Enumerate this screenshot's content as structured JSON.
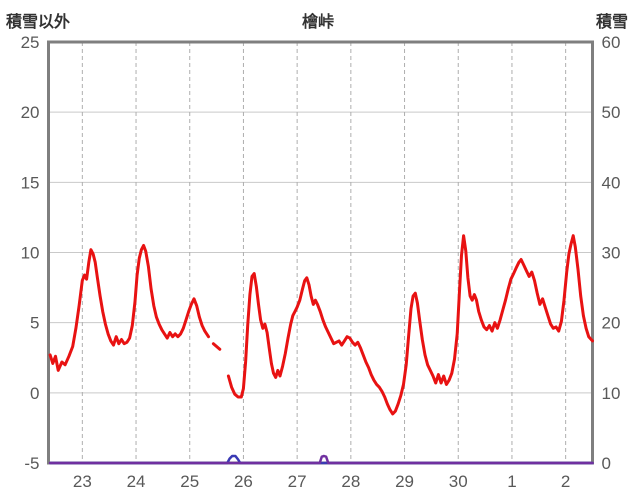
{
  "chart": {
    "title": "檜峠",
    "left_axis_title": "積雪以外",
    "right_axis_title": "積雪"
  },
  "chart_data": {
    "type": "line",
    "title": "檜峠",
    "legend": "none",
    "grid": {
      "horizontal": "solid",
      "vertical": "dashed"
    },
    "style": {
      "red_line": "#e81212",
      "purple_line": "#7030a0",
      "blue_line": "#3a3ab4",
      "grid_h": "#c9c9c9",
      "grid_v": "#aeaeae",
      "border": "#7f7f7f",
      "tick_text": "#595959",
      "title_text": "#333333",
      "background": "#ffffff"
    },
    "left_axis": {
      "label": "積雪以外",
      "range": [
        -5,
        25
      ],
      "ticks": [
        -5,
        0,
        5,
        10,
        15,
        20,
        25
      ]
    },
    "right_axis": {
      "label": "積雪",
      "range": [
        0,
        60
      ],
      "ticks": [
        0,
        10,
        20,
        30,
        40,
        50,
        60
      ]
    },
    "x_axis": {
      "range": [
        22.37,
        32.5
      ],
      "tick_positions": [
        23,
        24,
        25,
        26,
        27,
        28,
        29,
        30,
        31,
        32
      ],
      "tick_labels": [
        "23",
        "24",
        "25",
        "26",
        "27",
        "28",
        "29",
        "30",
        "1",
        "2"
      ]
    },
    "series": [
      {
        "name": "blue-baseline",
        "axis": "right",
        "color": "#3a3ab4",
        "width": 2.5,
        "segments": [
          [
            [
              22.4,
              0
            ],
            [
              25.7,
              0
            ],
            [
              25.74,
              0.6
            ],
            [
              25.79,
              1.0
            ],
            [
              25.85,
              1.0
            ],
            [
              25.9,
              0.5
            ],
            [
              25.94,
              0
            ],
            [
              32.5,
              0
            ]
          ]
        ]
      },
      {
        "name": "purple-baseline",
        "axis": "right",
        "color": "#7030a0",
        "width": 2.5,
        "segments": [
          [
            [
              22.4,
              0
            ],
            [
              27.42,
              0
            ],
            [
              27.46,
              0.9
            ],
            [
              27.5,
              1.0
            ],
            [
              27.54,
              0.9
            ],
            [
              27.58,
              0
            ],
            [
              32.5,
              0
            ]
          ]
        ]
      },
      {
        "name": "red-line",
        "axis": "left",
        "color": "#e81212",
        "width": 3,
        "segments": [
          [
            [
              22.4,
              2.7
            ],
            [
              22.45,
              2.1
            ],
            [
              22.5,
              2.6
            ],
            [
              22.55,
              1.6
            ],
            [
              22.62,
              2.2
            ],
            [
              22.68,
              2.0
            ],
            [
              22.75,
              2.6
            ],
            [
              22.82,
              3.3
            ],
            [
              22.88,
              4.6
            ],
            [
              22.94,
              6.2
            ],
            [
              23.0,
              8.0
            ],
            [
              23.04,
              8.4
            ],
            [
              23.08,
              8.1
            ],
            [
              23.12,
              9.3
            ],
            [
              23.16,
              10.2
            ],
            [
              23.2,
              9.9
            ],
            [
              23.24,
              9.3
            ],
            [
              23.28,
              8.2
            ],
            [
              23.33,
              6.9
            ],
            [
              23.38,
              5.8
            ],
            [
              23.43,
              4.9
            ],
            [
              23.48,
              4.2
            ],
            [
              23.53,
              3.7
            ],
            [
              23.58,
              3.4
            ],
            [
              23.63,
              4.0
            ],
            [
              23.68,
              3.5
            ],
            [
              23.73,
              3.8
            ],
            [
              23.78,
              3.5
            ],
            [
              23.83,
              3.6
            ],
            [
              23.88,
              3.9
            ],
            [
              23.93,
              4.8
            ],
            [
              23.98,
              6.5
            ],
            [
              24.02,
              8.4
            ],
            [
              24.06,
              9.6
            ],
            [
              24.1,
              10.2
            ],
            [
              24.14,
              10.5
            ],
            [
              24.18,
              10.1
            ],
            [
              24.23,
              9.0
            ],
            [
              24.28,
              7.4
            ],
            [
              24.33,
              6.2
            ],
            [
              24.38,
              5.4
            ],
            [
              24.43,
              4.9
            ],
            [
              24.48,
              4.5
            ],
            [
              24.53,
              4.2
            ],
            [
              24.58,
              3.9
            ],
            [
              24.63,
              4.3
            ],
            [
              24.68,
              4.0
            ],
            [
              24.73,
              4.2
            ],
            [
              24.78,
              4.0
            ],
            [
              24.83,
              4.2
            ],
            [
              24.88,
              4.6
            ],
            [
              24.93,
              5.2
            ],
            [
              24.98,
              5.8
            ],
            [
              25.03,
              6.3
            ],
            [
              25.08,
              6.7
            ],
            [
              25.13,
              6.2
            ],
            [
              25.18,
              5.4
            ],
            [
              25.23,
              4.8
            ],
            [
              25.28,
              4.4
            ],
            [
              25.35,
              4.0
            ]
          ],
          [
            [
              25.44,
              3.5
            ],
            [
              25.56,
              3.1
            ]
          ],
          [
            [
              25.72,
              1.2
            ],
            [
              25.78,
              0.4
            ],
            [
              25.84,
              -0.1
            ],
            [
              25.9,
              -0.3
            ],
            [
              25.96,
              -0.3
            ],
            [
              26.0,
              0.3
            ],
            [
              26.04,
              2.2
            ],
            [
              26.08,
              4.8
            ],
            [
              26.12,
              7.0
            ],
            [
              26.16,
              8.3
            ],
            [
              26.2,
              8.5
            ],
            [
              26.24,
              7.6
            ],
            [
              26.28,
              6.3
            ],
            [
              26.32,
              5.2
            ],
            [
              26.36,
              4.6
            ],
            [
              26.4,
              4.9
            ],
            [
              26.44,
              4.3
            ],
            [
              26.48,
              3.2
            ],
            [
              26.52,
              2.1
            ],
            [
              26.56,
              1.4
            ],
            [
              26.6,
              1.1
            ],
            [
              26.64,
              1.6
            ],
            [
              26.68,
              1.2
            ],
            [
              26.73,
              1.9
            ],
            [
              26.78,
              2.8
            ],
            [
              26.83,
              3.9
            ],
            [
              26.88,
              4.9
            ],
            [
              26.92,
              5.5
            ],
            [
              26.96,
              5.8
            ],
            [
              27.0,
              6.1
            ],
            [
              27.05,
              6.6
            ],
            [
              27.1,
              7.4
            ],
            [
              27.14,
              8.0
            ],
            [
              27.18,
              8.2
            ],
            [
              27.22,
              7.7
            ],
            [
              27.26,
              6.9
            ],
            [
              27.3,
              6.3
            ],
            [
              27.34,
              6.6
            ],
            [
              27.38,
              6.3
            ],
            [
              27.43,
              5.8
            ],
            [
              27.48,
              5.2
            ],
            [
              27.53,
              4.7
            ],
            [
              27.58,
              4.3
            ],
            [
              27.63,
              3.9
            ],
            [
              27.68,
              3.5
            ],
            [
              27.73,
              3.6
            ],
            [
              27.78,
              3.7
            ],
            [
              27.83,
              3.4
            ],
            [
              27.88,
              3.7
            ],
            [
              27.93,
              4.0
            ],
            [
              27.98,
              3.9
            ],
            [
              28.03,
              3.6
            ],
            [
              28.08,
              3.4
            ],
            [
              28.13,
              3.6
            ],
            [
              28.18,
              3.2
            ],
            [
              28.23,
              2.7
            ],
            [
              28.28,
              2.2
            ],
            [
              28.33,
              1.8
            ],
            [
              28.38,
              1.3
            ],
            [
              28.43,
              0.9
            ],
            [
              28.48,
              0.6
            ],
            [
              28.53,
              0.4
            ],
            [
              28.58,
              0.1
            ],
            [
              28.63,
              -0.3
            ],
            [
              28.68,
              -0.8
            ],
            [
              28.73,
              -1.2
            ],
            [
              28.78,
              -1.5
            ],
            [
              28.83,
              -1.3
            ],
            [
              28.88,
              -0.8
            ],
            [
              28.93,
              -0.2
            ],
            [
              28.98,
              0.6
            ],
            [
              29.03,
              2.0
            ],
            [
              29.08,
              4.2
            ],
            [
              29.12,
              6.0
            ],
            [
              29.16,
              6.9
            ],
            [
              29.2,
              7.1
            ],
            [
              29.24,
              6.4
            ],
            [
              29.28,
              5.2
            ],
            [
              29.33,
              3.8
            ],
            [
              29.38,
              2.7
            ],
            [
              29.43,
              2.0
            ],
            [
              29.48,
              1.6
            ],
            [
              29.53,
              1.2
            ],
            [
              29.58,
              0.7
            ],
            [
              29.63,
              1.3
            ],
            [
              29.68,
              0.7
            ],
            [
              29.73,
              1.2
            ],
            [
              29.78,
              0.6
            ],
            [
              29.83,
              0.9
            ],
            [
              29.88,
              1.4
            ],
            [
              29.93,
              2.4
            ],
            [
              29.98,
              4.2
            ],
            [
              30.02,
              7.0
            ],
            [
              30.06,
              9.8
            ],
            [
              30.1,
              11.2
            ],
            [
              30.14,
              10.1
            ],
            [
              30.18,
              8.2
            ],
            [
              30.22,
              6.9
            ],
            [
              30.26,
              6.6
            ],
            [
              30.3,
              7.0
            ],
            [
              30.34,
              6.6
            ],
            [
              30.38,
              5.8
            ],
            [
              30.43,
              5.2
            ],
            [
              30.48,
              4.7
            ],
            [
              30.53,
              4.5
            ],
            [
              30.58,
              4.8
            ],
            [
              30.63,
              4.4
            ],
            [
              30.68,
              5.0
            ],
            [
              30.73,
              4.6
            ],
            [
              30.78,
              5.2
            ],
            [
              30.83,
              5.9
            ],
            [
              30.88,
              6.6
            ],
            [
              30.93,
              7.4
            ],
            [
              30.98,
              8.1
            ],
            [
              31.03,
              8.5
            ],
            [
              31.08,
              8.9
            ],
            [
              31.13,
              9.3
            ],
            [
              31.17,
              9.5
            ],
            [
              31.22,
              9.1
            ],
            [
              31.27,
              8.7
            ],
            [
              31.32,
              8.3
            ],
            [
              31.37,
              8.6
            ],
            [
              31.42,
              8.0
            ],
            [
              31.47,
              7.1
            ],
            [
              31.52,
              6.3
            ],
            [
              31.57,
              6.7
            ],
            [
              31.62,
              6.1
            ],
            [
              31.67,
              5.5
            ],
            [
              31.72,
              4.9
            ],
            [
              31.77,
              4.6
            ],
            [
              31.82,
              4.7
            ],
            [
              31.87,
              4.4
            ],
            [
              31.92,
              5.1
            ],
            [
              31.97,
              6.6
            ],
            [
              32.02,
              8.6
            ],
            [
              32.06,
              9.9
            ],
            [
              32.1,
              10.6
            ],
            [
              32.14,
              11.2
            ],
            [
              32.18,
              10.4
            ],
            [
              32.23,
              8.8
            ],
            [
              32.28,
              6.9
            ],
            [
              32.33,
              5.5
            ],
            [
              32.38,
              4.6
            ],
            [
              32.43,
              4.0
            ],
            [
              32.5,
              3.7
            ]
          ]
        ]
      }
    ]
  }
}
